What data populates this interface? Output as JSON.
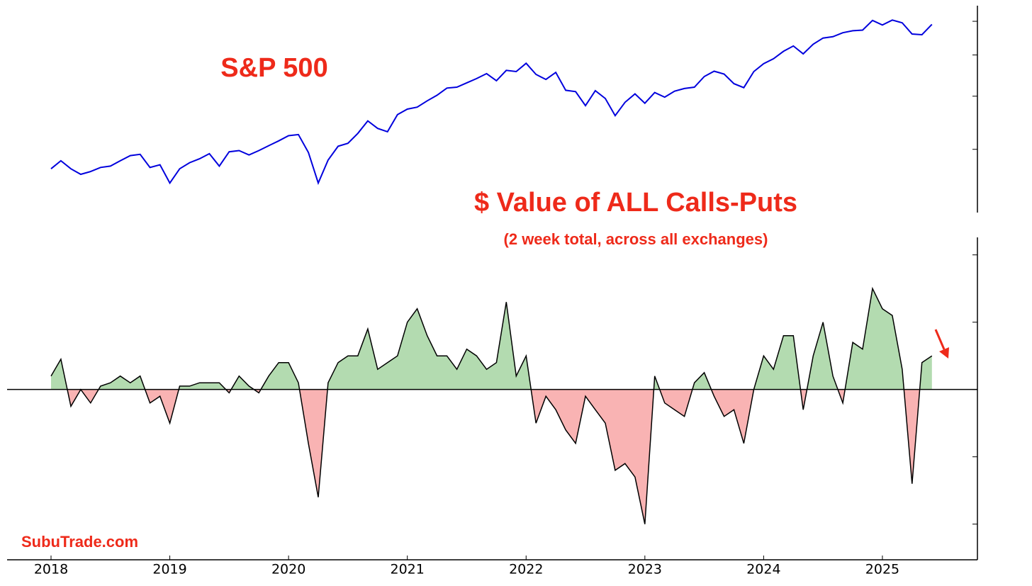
{
  "chart_data": [
    {
      "type": "line",
      "title": "S&P 500",
      "log_scale": true,
      "color": "#0000dd",
      "x": [
        2018,
        2018.083,
        2018.167,
        2018.25,
        2018.333,
        2018.417,
        2018.5,
        2018.583,
        2018.667,
        2018.75,
        2018.833,
        2018.917,
        2019,
        2019.083,
        2019.167,
        2019.25,
        2019.333,
        2019.417,
        2019.5,
        2019.583,
        2019.667,
        2019.75,
        2019.833,
        2019.917,
        2020,
        2020.083,
        2020.167,
        2020.25,
        2020.333,
        2020.417,
        2020.5,
        2020.583,
        2020.667,
        2020.75,
        2020.833,
        2020.917,
        2021,
        2021.083,
        2021.167,
        2021.25,
        2021.333,
        2021.417,
        2021.5,
        2021.583,
        2021.667,
        2021.75,
        2021.833,
        2021.917,
        2022,
        2022.083,
        2022.167,
        2022.25,
        2022.333,
        2022.417,
        2022.5,
        2022.583,
        2022.667,
        2022.75,
        2022.833,
        2022.917,
        2023,
        2023.083,
        2023.167,
        2023.25,
        2023.333,
        2023.417,
        2023.5,
        2023.583,
        2023.667,
        2023.75,
        2023.833,
        2023.917,
        2024,
        2024.083,
        2024.167,
        2024.25,
        2024.333,
        2024.417,
        2024.5,
        2024.583,
        2024.667,
        2024.75,
        2024.833,
        2024.917,
        2025,
        2025.083,
        2025.167,
        2025.25,
        2025.333,
        2025.417
      ],
      "values": [
        2700,
        2820,
        2700,
        2620,
        2660,
        2720,
        2740,
        2820,
        2900,
        2920,
        2720,
        2760,
        2500,
        2700,
        2790,
        2850,
        2930,
        2740,
        2960,
        2980,
        2910,
        2980,
        3060,
        3140,
        3230,
        3250,
        2950,
        2500,
        2830,
        3050,
        3100,
        3270,
        3500,
        3360,
        3300,
        3620,
        3730,
        3770,
        3900,
        4020,
        4180,
        4200,
        4300,
        4400,
        4520,
        4350,
        4600,
        4570,
        4780,
        4500,
        4380,
        4550,
        4130,
        4100,
        3800,
        4120,
        3950,
        3600,
        3870,
        4050,
        3850,
        4080,
        3980,
        4110,
        4170,
        4200,
        4450,
        4580,
        4510,
        4280,
        4190,
        4570,
        4770,
        4900,
        5100,
        5250,
        5030,
        5300,
        5480,
        5520,
        5640,
        5700,
        5720,
        6030,
        5880,
        6040,
        5950,
        5600,
        5580,
        5900
      ],
      "xlim": [
        2017.63,
        2025.8
      ],
      "ylim": [
        2130,
        6530
      ],
      "yticks": [
        3000,
        4000,
        5000,
        6000
      ]
    },
    {
      "type": "area",
      "title": "$ Value of ALL Calls-Puts",
      "subtitle": "(2 week total, across all exchanges)",
      "annotation": "SubuTrade.com",
      "color": "#000000",
      "positive_color": "#b3dbb0",
      "negative_color": "#f9b3b3",
      "x": [
        2018,
        2018.083,
        2018.167,
        2018.25,
        2018.333,
        2018.417,
        2018.5,
        2018.583,
        2018.667,
        2018.75,
        2018.833,
        2018.917,
        2019,
        2019.083,
        2019.167,
        2019.25,
        2019.333,
        2019.417,
        2019.5,
        2019.583,
        2019.667,
        2019.75,
        2019.833,
        2019.917,
        2020,
        2020.083,
        2020.167,
        2020.25,
        2020.333,
        2020.417,
        2020.5,
        2020.583,
        2020.667,
        2020.75,
        2020.833,
        2020.917,
        2021,
        2021.083,
        2021.167,
        2021.25,
        2021.333,
        2021.417,
        2021.5,
        2021.583,
        2021.667,
        2021.75,
        2021.833,
        2021.917,
        2022,
        2022.083,
        2022.167,
        2022.25,
        2022.333,
        2022.417,
        2022.5,
        2022.583,
        2022.667,
        2022.75,
        2022.833,
        2022.917,
        2023,
        2023.083,
        2023.167,
        2023.25,
        2023.333,
        2023.417,
        2023.5,
        2023.583,
        2023.667,
        2023.75,
        2023.833,
        2023.917,
        2024,
        2024.083,
        2024.167,
        2024.25,
        2024.333,
        2024.417,
        2024.5,
        2024.583,
        2024.667,
        2024.75,
        2024.833,
        2024.917,
        2025,
        2025.083,
        2025.167,
        2025.25,
        2025.333,
        2025.417
      ],
      "values": [
        0.2,
        0.45,
        -0.25,
        0,
        -0.2,
        0.05,
        0.1,
        0.2,
        0.1,
        0.2,
        -0.2,
        -0.1,
        -0.5,
        0.05,
        0.05,
        0.1,
        0.1,
        0.1,
        -0.05,
        0.2,
        0.05,
        -0.05,
        0.2,
        0.4,
        0.4,
        0.1,
        -0.8,
        -1.6,
        0.1,
        0.4,
        0.5,
        0.5,
        0.9,
        0.3,
        0.4,
        0.5,
        1.0,
        1.2,
        0.8,
        0.5,
        0.5,
        0.3,
        0.6,
        0.5,
        0.3,
        0.4,
        1.3,
        0.2,
        0.5,
        -0.5,
        -0.1,
        -0.3,
        -0.6,
        -0.8,
        -0.1,
        -0.3,
        -0.5,
        -1.2,
        -1.1,
        -1.3,
        -2.0,
        0.2,
        -0.2,
        -0.3,
        -0.4,
        0.1,
        0.25,
        -0.1,
        -0.4,
        -0.3,
        -0.8,
        0,
        0.5,
        0.3,
        0.8,
        0.8,
        -0.3,
        0.5,
        1.0,
        0.2,
        -0.2,
        0.7,
        0.6,
        1.5,
        1.2,
        1.1,
        0.3,
        -1.4,
        0.4,
        0.5
      ],
      "xlim": [
        2017.63,
        2025.8
      ],
      "xticks": [
        2018,
        2019,
        2020,
        2021,
        2022,
        2023,
        2024,
        2025
      ],
      "ylim": [
        -2.53,
        2.26
      ],
      "yticks": [
        -2,
        -1,
        0,
        1,
        2
      ]
    }
  ]
}
